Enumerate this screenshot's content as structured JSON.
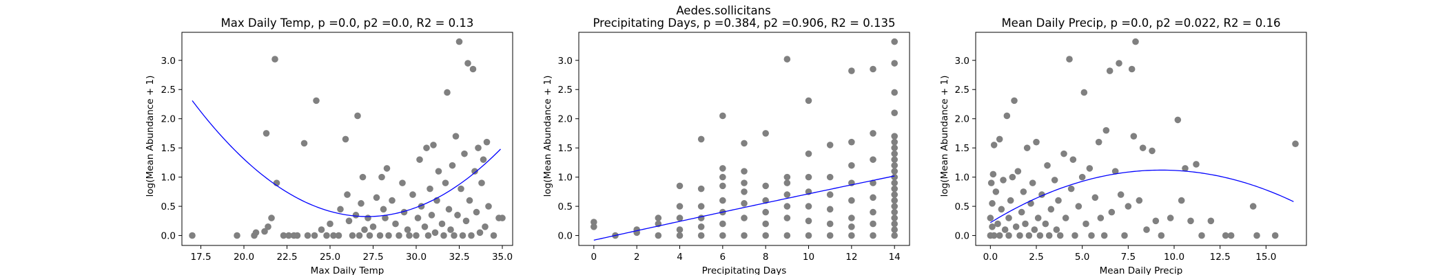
{
  "suptitle": "Aedes.sollicitans",
  "chart_data": [
    {
      "type": "scatter",
      "title": "Max Daily Temp, p =0.0, p2 =0.0, R2 = 0.13",
      "xlabel": "Max Daily Temp",
      "ylabel": "log(Mean Abundance + 1)",
      "xlim": [
        16.4,
        35.6
      ],
      "ylim": [
        -0.17,
        3.48
      ],
      "xticks": [
        17.5,
        20.0,
        22.5,
        25.0,
        27.5,
        30.0,
        32.5,
        35.0
      ],
      "yticks": [
        0.0,
        0.5,
        1.0,
        1.5,
        2.0,
        2.5,
        3.0
      ],
      "xtick_labels": [
        "17.5",
        "20.0",
        "22.5",
        "25.0",
        "27.5",
        "30.0",
        "32.5",
        "35.0"
      ],
      "ytick_labels": [
        "0.0",
        "0.5",
        "1.0",
        "1.5",
        "2.0",
        "2.5",
        "3.0"
      ],
      "point_color": "#808080",
      "fit_color": "#0000ff",
      "fit": {
        "type": "quadratic",
        "x": [
          17.0,
          28.3,
          34.9
        ],
        "y": [
          2.31,
          0.35,
          1.48
        ]
      },
      "points": [
        [
          17.0,
          0.0
        ],
        [
          19.6,
          0.0
        ],
        [
          20.6,
          0.0
        ],
        [
          20.7,
          0.05
        ],
        [
          21.2,
          0.07
        ],
        [
          21.3,
          1.75
        ],
        [
          21.4,
          0.15
        ],
        [
          21.6,
          0.3
        ],
        [
          21.8,
          3.02
        ],
        [
          21.9,
          0.9
        ],
        [
          22.3,
          0.0
        ],
        [
          22.6,
          0.0
        ],
        [
          22.9,
          0.0
        ],
        [
          23.1,
          0.0
        ],
        [
          23.5,
          1.58
        ],
        [
          23.7,
          0.0
        ],
        [
          24.1,
          0.0
        ],
        [
          24.2,
          2.31
        ],
        [
          24.5,
          0.1
        ],
        [
          24.8,
          0.0
        ],
        [
          25.0,
          0.2
        ],
        [
          25.2,
          0.0
        ],
        [
          25.5,
          0.0
        ],
        [
          25.6,
          0.45
        ],
        [
          25.9,
          1.65
        ],
        [
          26.0,
          0.7
        ],
        [
          26.1,
          0.25
        ],
        [
          26.3,
          0.0
        ],
        [
          26.5,
          0.35
        ],
        [
          26.6,
          2.05
        ],
        [
          26.7,
          0.0
        ],
        [
          26.8,
          0.55
        ],
        [
          26.9,
          1.0
        ],
        [
          27.0,
          0.1
        ],
        [
          27.2,
          0.3
        ],
        [
          27.3,
          0.0
        ],
        [
          27.5,
          0.15
        ],
        [
          27.7,
          0.65
        ],
        [
          27.9,
          0.0
        ],
        [
          28.0,
          1.0
        ],
        [
          28.1,
          0.45
        ],
        [
          28.2,
          0.3
        ],
        [
          28.3,
          1.15
        ],
        [
          28.4,
          0.0
        ],
        [
          28.6,
          0.6
        ],
        [
          28.8,
          0.2
        ],
        [
          29.0,
          0.0
        ],
        [
          29.2,
          0.9
        ],
        [
          29.3,
          0.4
        ],
        [
          29.5,
          0.1
        ],
        [
          29.6,
          0.0
        ],
        [
          29.8,
          0.7
        ],
        [
          30.0,
          0.0
        ],
        [
          30.1,
          0.3
        ],
        [
          30.2,
          1.3
        ],
        [
          30.3,
          0.5
        ],
        [
          30.5,
          0.15
        ],
        [
          30.6,
          1.5
        ],
        [
          30.7,
          0.0
        ],
        [
          30.8,
          0.8
        ],
        [
          30.9,
          0.35
        ],
        [
          31.0,
          1.55
        ],
        [
          31.1,
          0.05
        ],
        [
          31.2,
          0.6
        ],
        [
          31.3,
          1.1
        ],
        [
          31.5,
          0.2
        ],
        [
          31.6,
          0.0
        ],
        [
          31.7,
          0.9
        ],
        [
          31.8,
          2.45
        ],
        [
          31.9,
          0.45
        ],
        [
          32.0,
          0.1
        ],
        [
          32.1,
          1.2
        ],
        [
          32.2,
          0.0
        ],
        [
          32.3,
          1.7
        ],
        [
          32.4,
          0.35
        ],
        [
          32.5,
          3.32
        ],
        [
          32.6,
          0.8
        ],
        [
          32.7,
          0.0
        ],
        [
          32.8,
          1.4
        ],
        [
          32.9,
          0.25
        ],
        [
          33.0,
          2.95
        ],
        [
          33.1,
          0.6
        ],
        [
          33.2,
          0.0
        ],
        [
          33.3,
          2.85
        ],
        [
          33.4,
          1.1
        ],
        [
          33.5,
          0.4
        ],
        [
          33.6,
          1.5
        ],
        [
          33.7,
          0.05
        ],
        [
          33.8,
          0.9
        ],
        [
          33.9,
          1.3
        ],
        [
          34.0,
          0.15
        ],
        [
          34.1,
          1.6
        ],
        [
          34.2,
          0.5
        ],
        [
          34.5,
          0.0
        ],
        [
          34.8,
          0.3
        ],
        [
          35.0,
          0.3
        ]
      ]
    },
    {
      "type": "scatter",
      "title": "Precipitating Days, p =0.384, p2 =0.906, R2 = 0.135",
      "xlabel": "Precipitating Days",
      "ylabel": "log(Mean Abundance + 1)",
      "xlim": [
        -0.7,
        14.7
      ],
      "ylim": [
        -0.17,
        3.48
      ],
      "xticks": [
        0,
        2,
        4,
        6,
        8,
        10,
        12,
        14
      ],
      "yticks": [
        0.0,
        0.5,
        1.0,
        1.5,
        2.0,
        2.5,
        3.0
      ],
      "xtick_labels": [
        "0",
        "2",
        "4",
        "6",
        "8",
        "10",
        "12",
        "14"
      ],
      "ytick_labels": [
        "0.0",
        "0.5",
        "1.0",
        "1.5",
        "2.0",
        "2.5",
        "3.0"
      ],
      "point_color": "#808080",
      "fit_color": "#0000ff",
      "fit": {
        "type": "quadratic",
        "x": [
          0,
          7,
          14
        ],
        "y": [
          -0.08,
          0.48,
          1.02
        ]
      },
      "points": [
        [
          0,
          0.15
        ],
        [
          0,
          0.23
        ],
        [
          1,
          0.0
        ],
        [
          2,
          0.05
        ],
        [
          2,
          0.1
        ],
        [
          3,
          0.0
        ],
        [
          3,
          0.2
        ],
        [
          3,
          0.3
        ],
        [
          4,
          0.0
        ],
        [
          4,
          0.1
        ],
        [
          4,
          0.3
        ],
        [
          4,
          0.5
        ],
        [
          4,
          0.85
        ],
        [
          5,
          0.0
        ],
        [
          5,
          0.15
        ],
        [
          5,
          0.3
        ],
        [
          5,
          0.5
        ],
        [
          5,
          0.8
        ],
        [
          5,
          1.65
        ],
        [
          6,
          0.0
        ],
        [
          6,
          0.2
        ],
        [
          6,
          0.4
        ],
        [
          6,
          0.6
        ],
        [
          6,
          0.85
        ],
        [
          6,
          1.0
        ],
        [
          6,
          1.15
        ],
        [
          6,
          2.05
        ],
        [
          7,
          0.0
        ],
        [
          7,
          0.3
        ],
        [
          7,
          0.55
        ],
        [
          7,
          0.75
        ],
        [
          7,
          0.9
        ],
        [
          7,
          1.1
        ],
        [
          7,
          1.58
        ],
        [
          8,
          0.0
        ],
        [
          8,
          0.2
        ],
        [
          8,
          0.4
        ],
        [
          8,
          0.6
        ],
        [
          8,
          0.85
        ],
        [
          8,
          1.75
        ],
        [
          9,
          0.0
        ],
        [
          9,
          0.3
        ],
        [
          9,
          0.5
        ],
        [
          9,
          0.7
        ],
        [
          9,
          0.9
        ],
        [
          9,
          1.0
        ],
        [
          9,
          3.02
        ],
        [
          10,
          0.0
        ],
        [
          10,
          0.25
        ],
        [
          10,
          0.5
        ],
        [
          10,
          0.75
        ],
        [
          10,
          1.0
        ],
        [
          10,
          1.4
        ],
        [
          10,
          2.31
        ],
        [
          11,
          0.0
        ],
        [
          11,
          0.2
        ],
        [
          11,
          0.45
        ],
        [
          11,
          0.7
        ],
        [
          11,
          1.0
        ],
        [
          11,
          1.55
        ],
        [
          12,
          0.0
        ],
        [
          12,
          0.15
        ],
        [
          12,
          0.3
        ],
        [
          12,
          0.6
        ],
        [
          12,
          0.9
        ],
        [
          12,
          1.2
        ],
        [
          12,
          1.6
        ],
        [
          12,
          2.82
        ],
        [
          13,
          0.0
        ],
        [
          13,
          0.2
        ],
        [
          13,
          0.4
        ],
        [
          13,
          0.65
        ],
        [
          13,
          0.9
        ],
        [
          13,
          1.3
        ],
        [
          13,
          1.75
        ],
        [
          13,
          2.85
        ],
        [
          14,
          0.0
        ],
        [
          14,
          0.1
        ],
        [
          14,
          0.2
        ],
        [
          14,
          0.3
        ],
        [
          14,
          0.4
        ],
        [
          14,
          0.5
        ],
        [
          14,
          0.6
        ],
        [
          14,
          0.7
        ],
        [
          14,
          0.8
        ],
        [
          14,
          0.9
        ],
        [
          14,
          1.0
        ],
        [
          14,
          1.1
        ],
        [
          14,
          1.2
        ],
        [
          14,
          1.3
        ],
        [
          14,
          1.4
        ],
        [
          14,
          1.5
        ],
        [
          14,
          1.6
        ],
        [
          14,
          1.7
        ],
        [
          14,
          2.1
        ],
        [
          14,
          2.45
        ],
        [
          14,
          2.95
        ],
        [
          14,
          3.32
        ]
      ]
    },
    {
      "type": "scatter",
      "title": "Mean Daily Precip, p =0.0, p2 =0.022, R2 = 0.16",
      "xlabel": "Mean Daily Precip",
      "ylabel": "log(Mean Abundance + 1)",
      "xlim": [
        -0.8,
        17.2
      ],
      "ylim": [
        -0.17,
        3.48
      ],
      "xticks": [
        0.0,
        2.5,
        5.0,
        7.5,
        10.0,
        12.5,
        15.0
      ],
      "yticks": [
        0.0,
        0.5,
        1.0,
        1.5,
        2.0,
        2.5,
        3.0
      ],
      "xtick_labels": [
        "0.0",
        "2.5",
        "5.0",
        "7.5",
        "10.0",
        "12.5",
        "15.0"
      ],
      "ytick_labels": [
        "0.0",
        "0.5",
        "1.0",
        "1.5",
        "2.0",
        "2.5",
        "3.0"
      ],
      "point_color": "#808080",
      "fit_color": "#0000ff",
      "fit": {
        "type": "quadratic",
        "x": [
          0.0,
          9.2,
          16.5
        ],
        "y": [
          0.22,
          1.12,
          0.58
        ]
      },
      "points": [
        [
          0.0,
          0.0
        ],
        [
          0.0,
          0.3
        ],
        [
          0.05,
          0.9
        ],
        [
          0.1,
          0.55
        ],
        [
          0.1,
          0.15
        ],
        [
          0.15,
          1.05
        ],
        [
          0.2,
          1.55
        ],
        [
          0.2,
          0.0
        ],
        [
          0.3,
          0.75
        ],
        [
          0.4,
          0.2
        ],
        [
          0.5,
          1.65
        ],
        [
          0.5,
          0.0
        ],
        [
          0.6,
          0.45
        ],
        [
          0.7,
          0.95
        ],
        [
          0.8,
          0.1
        ],
        [
          0.9,
          2.05
        ],
        [
          1.0,
          0.3
        ],
        [
          1.0,
          0.0
        ],
        [
          1.1,
          0.6
        ],
        [
          1.2,
          1.0
        ],
        [
          1.3,
          2.31
        ],
        [
          1.4,
          0.15
        ],
        [
          1.5,
          1.1
        ],
        [
          1.6,
          0.0
        ],
        [
          1.7,
          0.4
        ],
        [
          1.8,
          0.75
        ],
        [
          1.9,
          0.2
        ],
        [
          2.0,
          1.5
        ],
        [
          2.1,
          0.0
        ],
        [
          2.2,
          0.55
        ],
        [
          2.3,
          0.9
        ],
        [
          2.4,
          0.1
        ],
        [
          2.5,
          1.6
        ],
        [
          2.6,
          0.3
        ],
        [
          2.7,
          0.0
        ],
        [
          2.8,
          0.7
        ],
        [
          3.0,
          0.2
        ],
        [
          3.1,
          1.2
        ],
        [
          3.2,
          0.0
        ],
        [
          3.3,
          0.45
        ],
        [
          3.5,
          0.95
        ],
        [
          3.6,
          0.1
        ],
        [
          3.7,
          0.6
        ],
        [
          3.8,
          0.0
        ],
        [
          4.0,
          1.4
        ],
        [
          4.1,
          0.3
        ],
        [
          4.3,
          3.02
        ],
        [
          4.4,
          0.8
        ],
        [
          4.5,
          1.3
        ],
        [
          4.6,
          0.0
        ],
        [
          4.8,
          0.5
        ],
        [
          5.0,
          1.0
        ],
        [
          5.1,
          2.45
        ],
        [
          5.2,
          0.2
        ],
        [
          5.4,
          1.15
        ],
        [
          5.5,
          0.0
        ],
        [
          5.7,
          0.65
        ],
        [
          5.9,
          1.6
        ],
        [
          6.0,
          0.3
        ],
        [
          6.2,
          0.0
        ],
        [
          6.3,
          1.8
        ],
        [
          6.5,
          2.82
        ],
        [
          6.6,
          0.4
        ],
        [
          6.8,
          1.1
        ],
        [
          7.0,
          2.95
        ],
        [
          7.1,
          0.7
        ],
        [
          7.3,
          0.0
        ],
        [
          7.5,
          0.5
        ],
        [
          7.7,
          2.85
        ],
        [
          7.8,
          1.7
        ],
        [
          7.9,
          3.32
        ],
        [
          8.1,
          0.6
        ],
        [
          8.3,
          1.5
        ],
        [
          8.5,
          0.1
        ],
        [
          8.8,
          1.45
        ],
        [
          9.0,
          0.25
        ],
        [
          9.3,
          0.0
        ],
        [
          9.8,
          0.3
        ],
        [
          10.2,
          1.98
        ],
        [
          10.4,
          0.6
        ],
        [
          10.6,
          1.15
        ],
        [
          10.9,
          0.25
        ],
        [
          11.2,
          1.22
        ],
        [
          11.5,
          0.0
        ],
        [
          12.0,
          0.25
        ],
        [
          12.8,
          0.0
        ],
        [
          13.1,
          0.0
        ],
        [
          14.3,
          0.5
        ],
        [
          14.5,
          0.0
        ],
        [
          15.5,
          0.0
        ],
        [
          16.6,
          1.57
        ]
      ]
    }
  ]
}
